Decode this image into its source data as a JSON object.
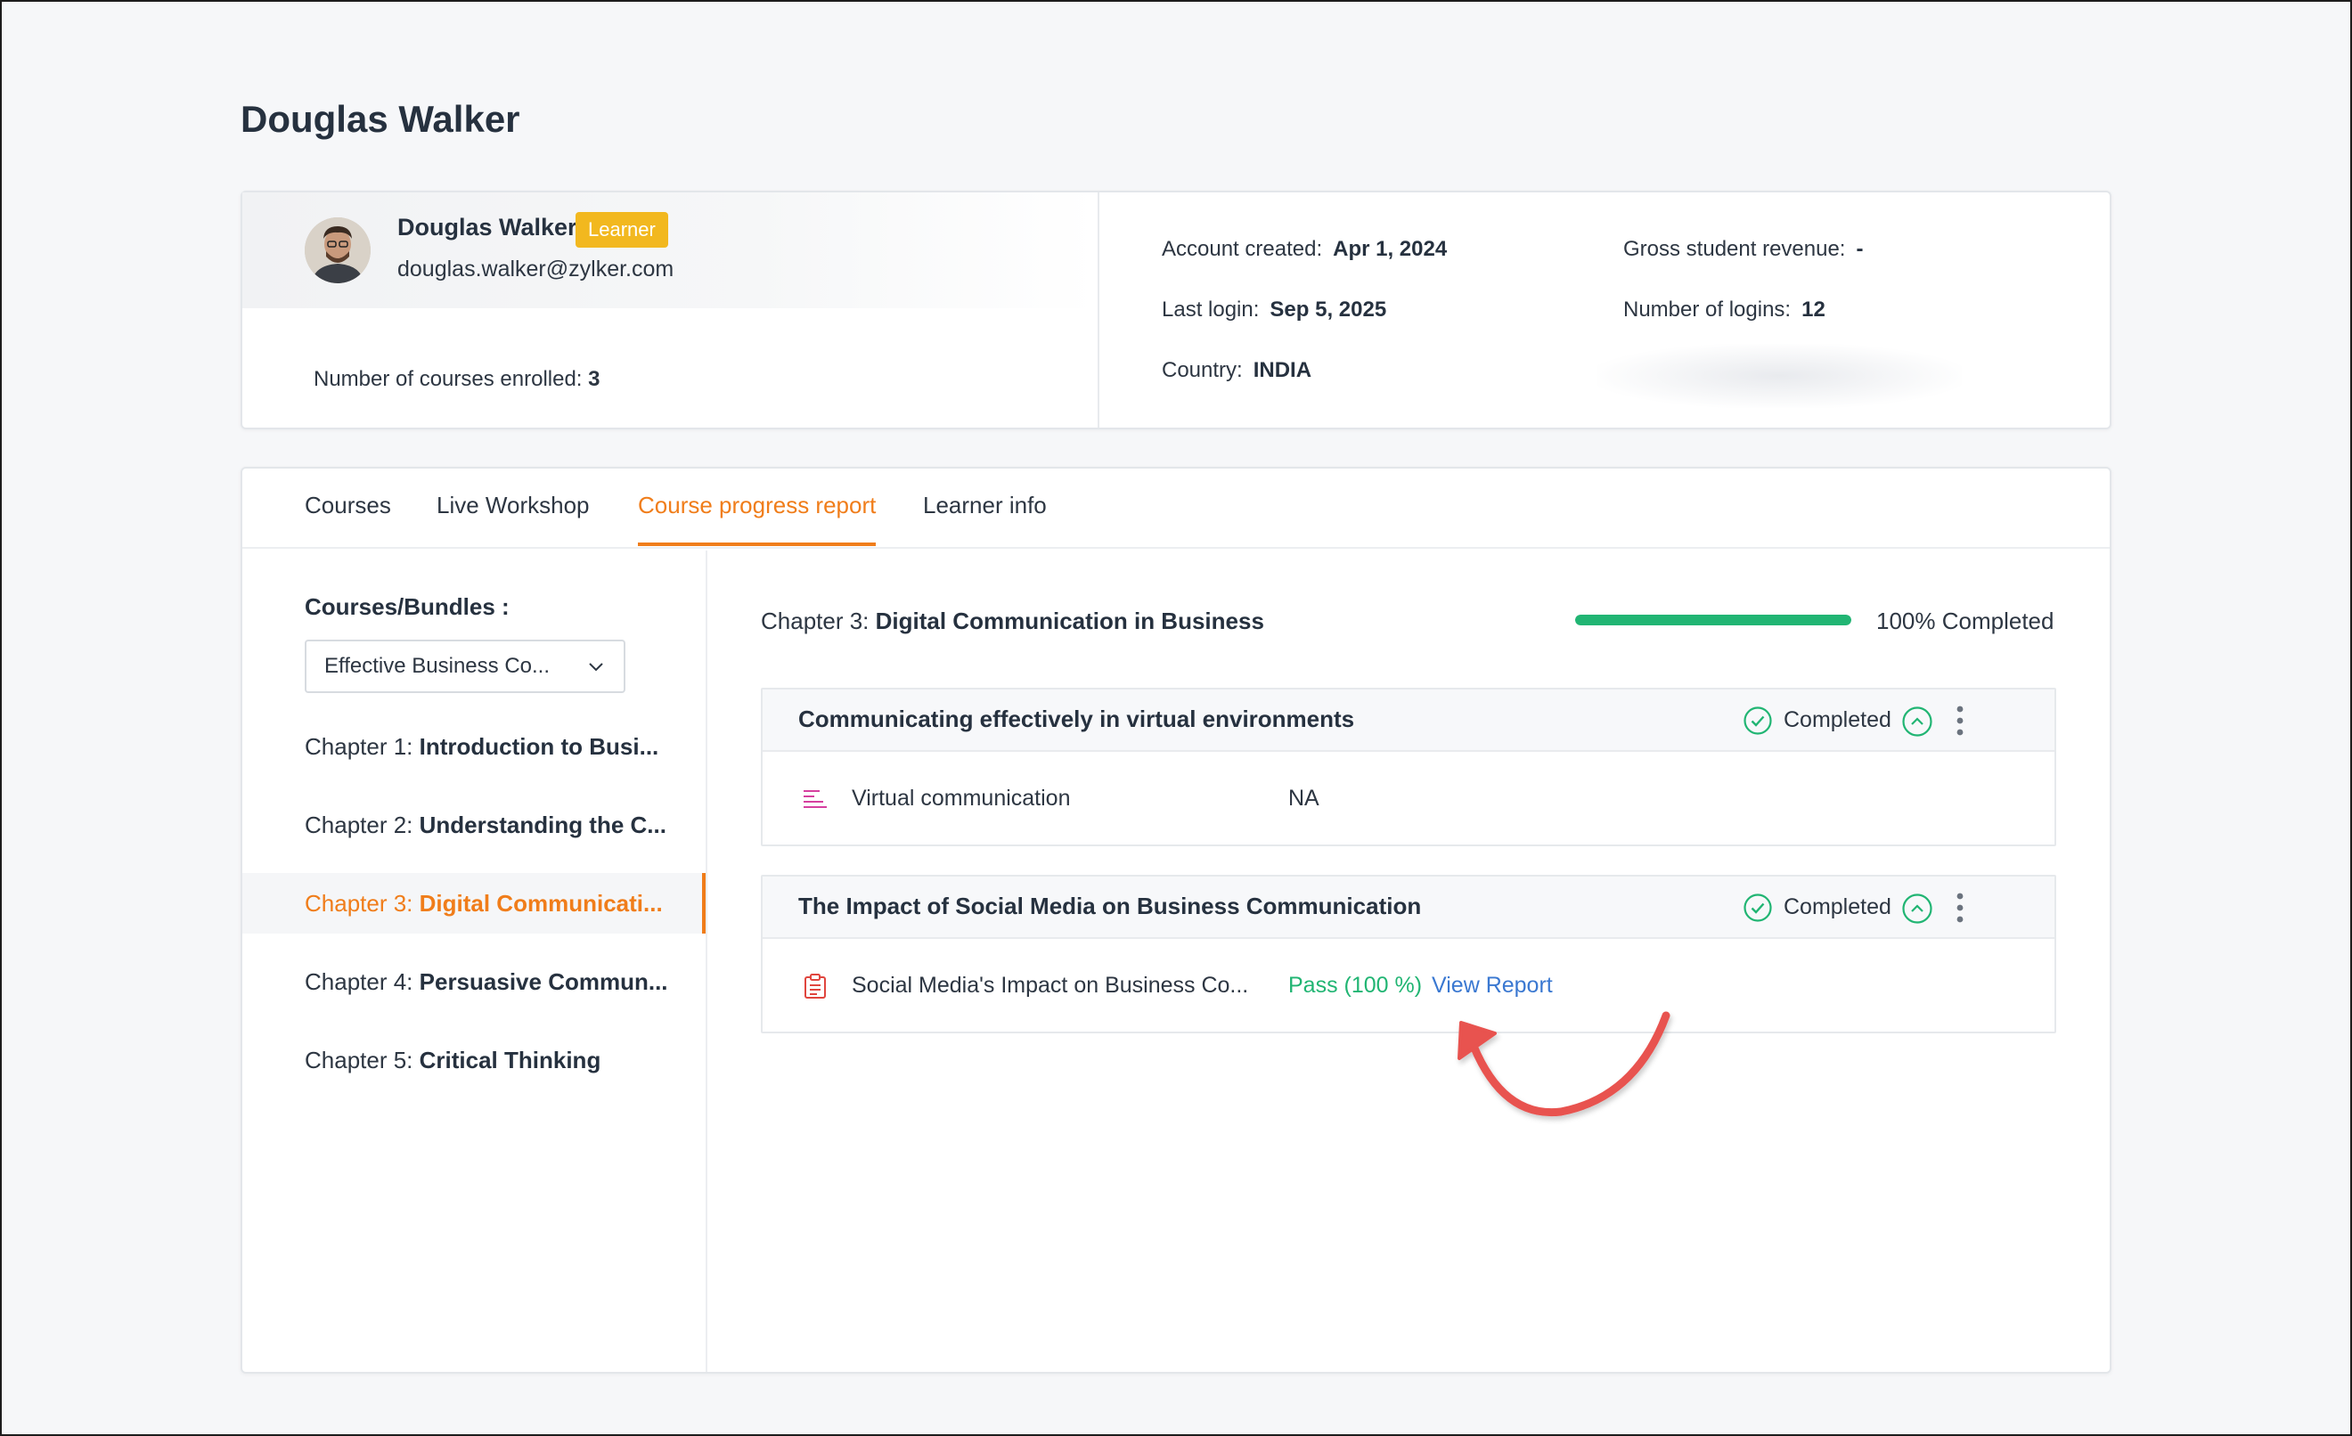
{
  "page": {
    "title": "Douglas Walker"
  },
  "profile": {
    "name": "Douglas Walker",
    "role_badge": "Learner",
    "email": "douglas.walker@zylker.com",
    "courses_enrolled_label": "Number of courses enrolled:",
    "courses_enrolled_value": "3",
    "account_created_label": "Account created:",
    "account_created_value": "Apr 1, 2024",
    "last_login_label": "Last login:",
    "last_login_value": "Sep 5, 2025",
    "country_label": "Country:",
    "country_value": "INDIA",
    "gross_revenue_label": "Gross student revenue:",
    "gross_revenue_value": "-",
    "logins_label": "Number of logins:",
    "logins_value": "12"
  },
  "tabs": [
    {
      "label": "Courses",
      "active": false
    },
    {
      "label": "Live Workshop",
      "active": false
    },
    {
      "label": "Course progress report",
      "active": true
    },
    {
      "label": "Learner info",
      "active": false
    }
  ],
  "sidebar": {
    "courses_bundles_label": "Courses/Bundles :",
    "selected_course": "Effective Business Co...",
    "chapters": [
      {
        "prefix": "Chapter 1:",
        "name": "Introduction to Busi...",
        "active": false
      },
      {
        "prefix": "Chapter 2:",
        "name": "Understanding the C...",
        "active": false
      },
      {
        "prefix": "Chapter 3:",
        "name": "Digital Communicati...",
        "active": true
      },
      {
        "prefix": "Chapter 4:",
        "name": "Persuasive Commun...",
        "active": false
      },
      {
        "prefix": "Chapter 5:",
        "name": "Critical Thinking",
        "active": false
      }
    ]
  },
  "content": {
    "chapter_prefix": "Chapter 3:",
    "chapter_name": "Digital Communication in Business",
    "progress_percent": 100,
    "progress_label": "100% Completed",
    "lessons": [
      {
        "title": "Communicating effectively in virtual environments",
        "status": "Completed",
        "item": {
          "icon": "text-lines-icon",
          "title": "Virtual communication",
          "result": "NA"
        }
      },
      {
        "title": "The Impact of Social Media on Business Communication",
        "status": "Completed",
        "item": {
          "icon": "clipboard-icon",
          "title": "Social Media's Impact on Business Co...",
          "pass_text": "Pass (100 %)",
          "link_text": "View Report"
        }
      }
    ]
  },
  "colors": {
    "accent": "#f07d1a",
    "success": "#21b573",
    "link": "#3a78d1",
    "badge": "#f2b81f",
    "annotation": "#e8524f"
  }
}
